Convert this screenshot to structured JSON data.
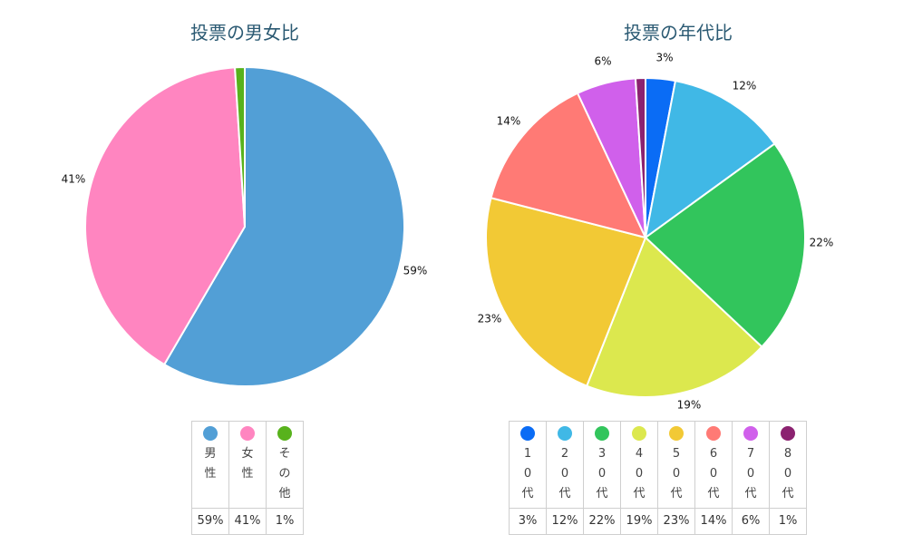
{
  "chart_data": [
    {
      "type": "pie",
      "title": "投票の男女比",
      "categories": [
        "男性",
        "女性",
        "その他"
      ],
      "values": [
        59,
        41,
        1
      ],
      "labels": [
        "59%",
        "41%",
        "1%"
      ],
      "colors": [
        "#529fd6",
        "#ff85c0",
        "#58b21c"
      ],
      "legend": "bottom",
      "slice_labels": [
        {
          "text": "59%"
        },
        {
          "text": "41%"
        },
        {
          "text": ""
        }
      ]
    },
    {
      "type": "pie",
      "title": "投票の年代比",
      "categories": [
        "10代",
        "20代",
        "30代",
        "40代",
        "50代",
        "60代",
        "70代",
        "80代"
      ],
      "values": [
        3,
        12,
        22,
        19,
        23,
        14,
        6,
        1
      ],
      "labels": [
        "3%",
        "12%",
        "22%",
        "19%",
        "23%",
        "14%",
        "6%",
        "1%"
      ],
      "colors": [
        "#0a6cf5",
        "#40b8e6",
        "#32c55c",
        "#dce84e",
        "#f2c935",
        "#ff7a75",
        "#d060eb",
        "#8b2270"
      ],
      "legend": "bottom",
      "slice_labels": [
        {
          "text": "3%"
        },
        {
          "text": "12%"
        },
        {
          "text": "22%"
        },
        {
          "text": "19%"
        },
        {
          "text": "23%"
        },
        {
          "text": "14%"
        },
        {
          "text": "6%"
        },
        {
          "text": ""
        }
      ]
    }
  ]
}
